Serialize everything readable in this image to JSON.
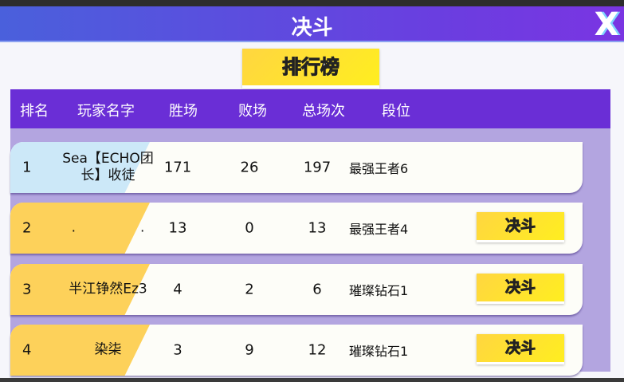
{
  "header": {
    "title": "决斗",
    "close_icon": "close-x-icon"
  },
  "tab": {
    "label": "排行榜"
  },
  "table": {
    "columns": [
      "排名",
      "玩家名字",
      "胜场",
      "败场",
      "总场次",
      "段位"
    ],
    "rows": [
      {
        "rank": "1",
        "name": "Sea【ECHO团长】收徒",
        "wins": "171",
        "losses": "26",
        "total": "197",
        "tier": "最强王者6",
        "action": "",
        "accent": "#cce8f8"
      },
      {
        "rank": "2",
        "name": ".               .",
        "wins": "13",
        "losses": "0",
        "total": "13",
        "tier": "最强王者4",
        "action": "决斗",
        "accent": "#fdd15a"
      },
      {
        "rank": "3",
        "name": "半江铮然Ez3",
        "wins": "4",
        "losses": "2",
        "total": "6",
        "tier": "璀璨钻石1",
        "action": "决斗",
        "accent": "#fdd15a"
      },
      {
        "rank": "4",
        "name": "染柒",
        "wins": "3",
        "losses": "9",
        "total": "12",
        "tier": "璀璨钻石1",
        "action": "决斗",
        "accent": "#fdd15a"
      }
    ]
  },
  "colors": {
    "header": "#6a2ed6",
    "button": "#ffe830"
  }
}
